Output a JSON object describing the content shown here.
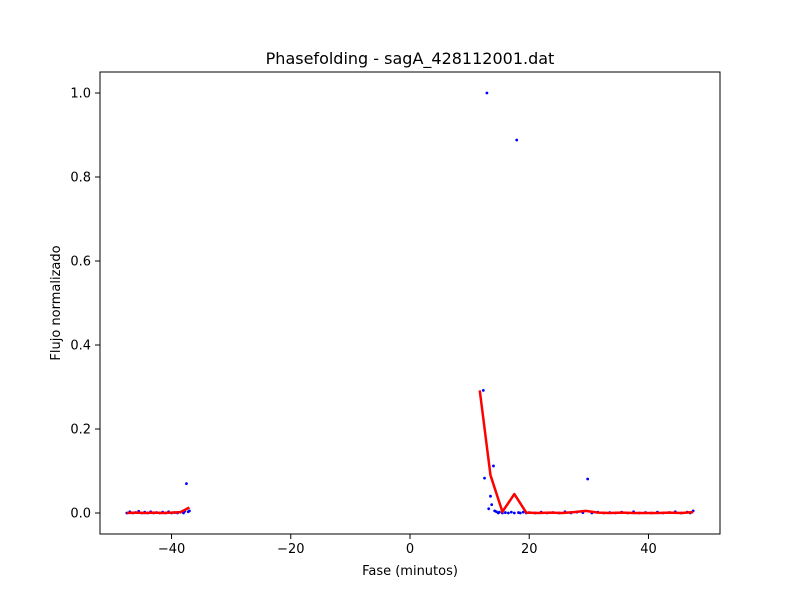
{
  "chart_data": {
    "type": "scatter",
    "title": "Phasefolding - sagA_428112001.dat",
    "xlabel": "Fase (minutos)",
    "ylabel": "Flujo normalizado",
    "xlim": [
      -52,
      52
    ],
    "ylim": [
      -0.05,
      1.05
    ],
    "xticks": [
      -40,
      -20,
      0,
      20,
      40
    ],
    "yticks": [
      0.0,
      0.2,
      0.4,
      0.6,
      0.8,
      1.0
    ],
    "xtick_labels": [
      "−40",
      "−20",
      "0",
      "20",
      "40"
    ],
    "ytick_labels": [
      "0.0",
      "0.2",
      "0.4",
      "0.6",
      "0.8",
      "1.0"
    ],
    "grid": false,
    "series": [
      {
        "kind": "scatter",
        "color": "#0000ff",
        "points": [
          [
            -47.5,
            0.0
          ],
          [
            -47.0,
            0.003
          ],
          [
            -46.5,
            0.0
          ],
          [
            -46.0,
            0.001
          ],
          [
            -45.5,
            0.004
          ],
          [
            -45.0,
            0.0
          ],
          [
            -44.5,
            0.002
          ],
          [
            -44.0,
            0.0
          ],
          [
            -43.5,
            0.003
          ],
          [
            -43.0,
            0.0
          ],
          [
            -42.5,
            0.001
          ],
          [
            -42.0,
            0.0
          ],
          [
            -41.5,
            0.002
          ],
          [
            -41.0,
            0.0
          ],
          [
            -40.5,
            0.003
          ],
          [
            -40.0,
            0.0
          ],
          [
            -39.5,
            0.001
          ],
          [
            -39.0,
            0.0
          ],
          [
            -38.5,
            0.002
          ],
          [
            -38.0,
            0.0
          ],
          [
            -37.8,
            0.004
          ],
          [
            -37.5,
            0.07
          ],
          [
            -37.2,
            0.003
          ],
          [
            -37.0,
            0.005
          ],
          [
            12.3,
            0.292
          ],
          [
            12.5,
            0.083
          ],
          [
            12.9,
            1.0
          ],
          [
            13.2,
            0.01
          ],
          [
            13.5,
            0.04
          ],
          [
            13.7,
            0.02
          ],
          [
            14.0,
            0.112
          ],
          [
            14.2,
            0.005
          ],
          [
            14.5,
            0.003
          ],
          [
            14.8,
            0.0
          ],
          [
            15.0,
            0.002
          ],
          [
            15.5,
            0.0
          ],
          [
            16.0,
            0.001
          ],
          [
            16.5,
            0.0
          ],
          [
            17.0,
            0.002
          ],
          [
            17.5,
            0.0
          ],
          [
            17.9,
            0.888
          ],
          [
            18.2,
            0.001
          ],
          [
            18.5,
            0.0
          ],
          [
            19.0,
            0.002
          ],
          [
            19.5,
            0.0
          ],
          [
            20.0,
            0.001
          ],
          [
            21.0,
            0.0
          ],
          [
            22.0,
            0.002
          ],
          [
            23.0,
            0.0
          ],
          [
            24.0,
            0.001
          ],
          [
            25.0,
            0.0
          ],
          [
            26.0,
            0.003
          ],
          [
            27.0,
            0.0
          ],
          [
            28.0,
            0.002
          ],
          [
            29.0,
            0.001
          ],
          [
            29.8,
            0.081
          ],
          [
            30.5,
            0.0
          ],
          [
            31.5,
            0.002
          ],
          [
            32.5,
            0.0
          ],
          [
            33.5,
            0.001
          ],
          [
            34.5,
            0.0
          ],
          [
            35.5,
            0.002
          ],
          [
            36.5,
            0.0
          ],
          [
            37.5,
            0.003
          ],
          [
            38.5,
            0.0
          ],
          [
            39.5,
            0.001
          ],
          [
            40.5,
            0.0
          ],
          [
            41.5,
            0.002
          ],
          [
            42.5,
            0.0
          ],
          [
            43.5,
            0.001
          ],
          [
            44.5,
            0.003
          ],
          [
            45.5,
            0.0
          ],
          [
            46.5,
            0.002
          ],
          [
            47.0,
            0.0
          ],
          [
            47.5,
            0.005
          ]
        ]
      },
      {
        "kind": "line",
        "color": "#ff0000",
        "points": [
          [
            -47.5,
            0.0
          ],
          [
            -46.0,
            0.001
          ],
          [
            -44.5,
            0.0
          ],
          [
            -43.0,
            0.001
          ],
          [
            -41.5,
            0.0
          ],
          [
            -40.0,
            0.001
          ],
          [
            -38.5,
            0.002
          ],
          [
            -37.0,
            0.013
          ]
        ]
      },
      {
        "kind": "line",
        "color": "#ff0000",
        "points": [
          [
            11.7,
            0.292
          ],
          [
            13.5,
            0.09
          ],
          [
            15.5,
            0.003
          ],
          [
            17.5,
            0.045
          ],
          [
            19.5,
            0.001
          ],
          [
            21.5,
            0.0
          ],
          [
            23.5,
            0.001
          ],
          [
            25.5,
            0.0
          ],
          [
            27.5,
            0.002
          ],
          [
            29.5,
            0.005
          ],
          [
            31.5,
            0.001
          ],
          [
            33.5,
            0.0
          ],
          [
            35.5,
            0.001
          ],
          [
            37.5,
            0.0
          ],
          [
            39.5,
            0.0
          ],
          [
            41.5,
            0.0
          ],
          [
            43.5,
            0.001
          ],
          [
            45.5,
            0.0
          ],
          [
            47.5,
            0.002
          ]
        ]
      }
    ]
  }
}
